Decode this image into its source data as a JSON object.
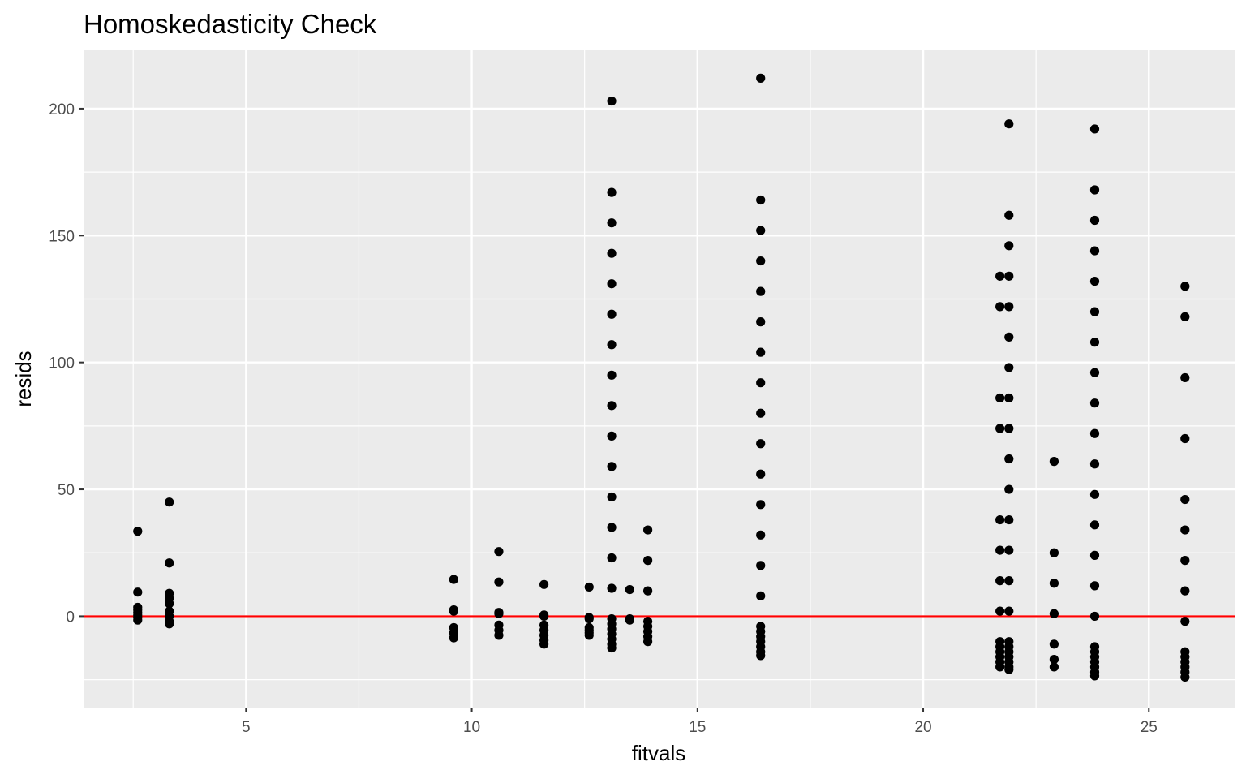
{
  "chart_data": {
    "type": "scatter",
    "title": "Homoskedasticity Check",
    "xlabel": "fitvals",
    "ylabel": "resids",
    "xlim": [
      1.4,
      26.9
    ],
    "ylim": [
      -36,
      223
    ],
    "x_ticks": [
      5,
      10,
      15,
      20,
      25
    ],
    "y_ticks": [
      0,
      50,
      100,
      150,
      200
    ],
    "x_minor_ticks": [
      2.5,
      7.5,
      12.5,
      17.5,
      22.5
    ],
    "y_minor_ticks": [
      -25,
      25,
      75,
      125,
      175
    ],
    "grid": true,
    "reference_line": {
      "y": 0,
      "color": "#ff0000"
    },
    "colors": {
      "panel_background": "#ebebeb",
      "grid_line": "#ffffff",
      "point": "#000000",
      "reference_line": "#ff0000",
      "tick_label": "#4d4d4d"
    },
    "series": [
      {
        "points": [
          [
            2.6,
            33.5
          ],
          [
            2.6,
            9.5
          ],
          [
            2.6,
            3.5
          ],
          [
            2.6,
            2.5
          ],
          [
            2.6,
            1.5
          ],
          [
            2.6,
            0.5
          ],
          [
            2.6,
            -0.5
          ],
          [
            2.6,
            -1.5
          ],
          [
            3.3,
            45
          ],
          [
            3.3,
            21
          ],
          [
            3.3,
            9
          ],
          [
            3.3,
            7
          ],
          [
            3.3,
            5
          ],
          [
            3.3,
            2
          ],
          [
            3.3,
            0
          ],
          [
            3.3,
            -2
          ],
          [
            3.3,
            -3
          ],
          [
            9.6,
            14.5
          ],
          [
            9.6,
            2.5
          ],
          [
            9.6,
            2
          ],
          [
            9.6,
            -4.5
          ],
          [
            9.6,
            -6.5
          ],
          [
            9.6,
            -8.5
          ],
          [
            10.6,
            25.5
          ],
          [
            10.6,
            13.5
          ],
          [
            10.6,
            1.5
          ],
          [
            10.6,
            1
          ],
          [
            10.6,
            -3.5
          ],
          [
            10.6,
            -5.5
          ],
          [
            10.6,
            -7.5
          ],
          [
            11.6,
            12.5
          ],
          [
            11.6,
            0.5
          ],
          [
            11.6,
            0
          ],
          [
            11.6,
            -3.5
          ],
          [
            11.6,
            -5.5
          ],
          [
            11.6,
            -7.5
          ],
          [
            11.6,
            -9.5
          ],
          [
            11.6,
            -11
          ],
          [
            12.6,
            11.5
          ],
          [
            12.6,
            -0.5
          ],
          [
            12.6,
            -1
          ],
          [
            12.6,
            -4.5
          ],
          [
            12.6,
            -5.5
          ],
          [
            12.6,
            -6.5
          ],
          [
            12.6,
            -7.5
          ],
          [
            13.1,
            203
          ],
          [
            13.1,
            167
          ],
          [
            13.1,
            155
          ],
          [
            13.1,
            143
          ],
          [
            13.1,
            131
          ],
          [
            13.1,
            119
          ],
          [
            13.1,
            107
          ],
          [
            13.1,
            95
          ],
          [
            13.1,
            83
          ],
          [
            13.1,
            71
          ],
          [
            13.1,
            59
          ],
          [
            13.1,
            47
          ],
          [
            13.1,
            35
          ],
          [
            13.1,
            23
          ],
          [
            13.1,
            11
          ],
          [
            13.1,
            -1
          ],
          [
            13.1,
            -3
          ],
          [
            13.1,
            -5
          ],
          [
            13.1,
            -7
          ],
          [
            13.1,
            -9
          ],
          [
            13.1,
            -11
          ],
          [
            13.1,
            -12.5
          ],
          [
            13.5,
            10.5
          ],
          [
            13.5,
            -1
          ],
          [
            13.5,
            -1.5
          ],
          [
            13.9,
            34
          ],
          [
            13.9,
            22
          ],
          [
            13.9,
            10
          ],
          [
            13.9,
            -2
          ],
          [
            13.9,
            -4
          ],
          [
            13.9,
            -6
          ],
          [
            13.9,
            -8
          ],
          [
            13.9,
            -10
          ],
          [
            16.4,
            212
          ],
          [
            16.4,
            164
          ],
          [
            16.4,
            152
          ],
          [
            16.4,
            140
          ],
          [
            16.4,
            128
          ],
          [
            16.4,
            116
          ],
          [
            16.4,
            104
          ],
          [
            16.4,
            92
          ],
          [
            16.4,
            80
          ],
          [
            16.4,
            68
          ],
          [
            16.4,
            56
          ],
          [
            16.4,
            44
          ],
          [
            16.4,
            32
          ],
          [
            16.4,
            20
          ],
          [
            16.4,
            8
          ],
          [
            16.4,
            -4
          ],
          [
            16.4,
            -6
          ],
          [
            16.4,
            -8
          ],
          [
            16.4,
            -10
          ],
          [
            16.4,
            -12
          ],
          [
            16.4,
            -14
          ],
          [
            16.4,
            -15.5
          ],
          [
            21.7,
            134
          ],
          [
            21.7,
            122
          ],
          [
            21.7,
            86
          ],
          [
            21.7,
            74
          ],
          [
            21.7,
            38
          ],
          [
            21.7,
            26
          ],
          [
            21.7,
            14
          ],
          [
            21.7,
            2
          ],
          [
            21.7,
            -10
          ],
          [
            21.7,
            -12
          ],
          [
            21.7,
            -14
          ],
          [
            21.7,
            -16
          ],
          [
            21.7,
            -18
          ],
          [
            21.7,
            -20
          ],
          [
            21.9,
            194
          ],
          [
            21.9,
            158
          ],
          [
            21.9,
            146
          ],
          [
            21.9,
            134
          ],
          [
            21.9,
            122
          ],
          [
            21.9,
            110
          ],
          [
            21.9,
            98
          ],
          [
            21.9,
            86
          ],
          [
            21.9,
            74
          ],
          [
            21.9,
            62
          ],
          [
            21.9,
            50
          ],
          [
            21.9,
            38
          ],
          [
            21.9,
            26
          ],
          [
            21.9,
            14
          ],
          [
            21.9,
            2
          ],
          [
            21.9,
            -10
          ],
          [
            21.9,
            -12
          ],
          [
            21.9,
            -14
          ],
          [
            21.9,
            -16
          ],
          [
            21.9,
            -18
          ],
          [
            21.9,
            -20
          ],
          [
            21.9,
            -21
          ],
          [
            22.9,
            61
          ],
          [
            22.9,
            25
          ],
          [
            22.9,
            13
          ],
          [
            22.9,
            1
          ],
          [
            22.9,
            -11
          ],
          [
            22.9,
            -17
          ],
          [
            22.9,
            -20
          ],
          [
            23.8,
            192
          ],
          [
            23.8,
            168
          ],
          [
            23.8,
            156
          ],
          [
            23.8,
            144
          ],
          [
            23.8,
            132
          ],
          [
            23.8,
            120
          ],
          [
            23.8,
            108
          ],
          [
            23.8,
            96
          ],
          [
            23.8,
            84
          ],
          [
            23.8,
            72
          ],
          [
            23.8,
            60
          ],
          [
            23.8,
            48
          ],
          [
            23.8,
            36
          ],
          [
            23.8,
            24
          ],
          [
            23.8,
            12
          ],
          [
            23.8,
            0
          ],
          [
            23.8,
            -12
          ],
          [
            23.8,
            -14
          ],
          [
            23.8,
            -16
          ],
          [
            23.8,
            -18
          ],
          [
            23.8,
            -20
          ],
          [
            23.8,
            -22
          ],
          [
            23.8,
            -23.5
          ],
          [
            25.8,
            130
          ],
          [
            25.8,
            118
          ],
          [
            25.8,
            94
          ],
          [
            25.8,
            70
          ],
          [
            25.8,
            46
          ],
          [
            25.8,
            34
          ],
          [
            25.8,
            22
          ],
          [
            25.8,
            10
          ],
          [
            25.8,
            -2
          ],
          [
            25.8,
            -14
          ],
          [
            25.8,
            -16
          ],
          [
            25.8,
            -18
          ],
          [
            25.8,
            -20
          ],
          [
            25.8,
            -22
          ],
          [
            25.8,
            -24
          ]
        ]
      }
    ]
  }
}
